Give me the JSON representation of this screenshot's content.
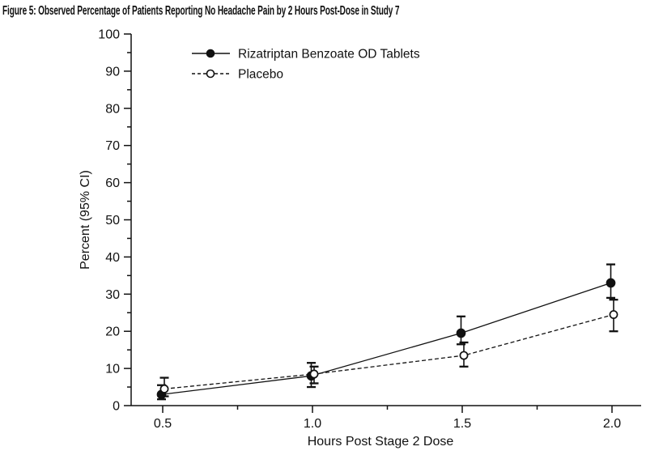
{
  "chart_data": {
    "type": "line",
    "title": "Figure 5: Observed Percentage of Patients Reporting No Headache Pain by 2 Hours Post-Dose in Study 7",
    "xlabel": "Hours Post Stage 2 Dose",
    "ylabel": "Percent (95% CI)",
    "xlim": [
      0.39,
      2.1
    ],
    "ylim": [
      0,
      100
    ],
    "grid": false,
    "legend_position": "top-left-inside",
    "x_ticks_major": [
      0.5,
      1.0,
      1.5,
      2.0
    ],
    "x_tick_labels": [
      "0.5",
      "1.0",
      "1.5",
      "2.0"
    ],
    "x_ticks_minor": [
      0.75,
      1.25,
      1.75
    ],
    "y_ticks_major": [
      0,
      10,
      20,
      30,
      40,
      50,
      60,
      70,
      80,
      90,
      100
    ],
    "y_ticks_minor": [
      5,
      15,
      25,
      35,
      45,
      55,
      65,
      75,
      85,
      95
    ],
    "series": [
      {
        "name": "Rizatriptan Benzoate OD Tablets",
        "line_style": "solid",
        "marker": "filled-circle",
        "x": [
          0.5,
          1.0,
          1.5,
          2.0
        ],
        "y": [
          3.0,
          8.0,
          19.5,
          33.0
        ],
        "ci_low": [
          1.7,
          5.0,
          16.5,
          29.0
        ],
        "ci_high": [
          5.5,
          11.5,
          24.0,
          38.0
        ]
      },
      {
        "name": "Placebo",
        "line_style": "dashed",
        "marker": "open-circle",
        "x": [
          0.5,
          1.0,
          1.5,
          2.0
        ],
        "y": [
          4.5,
          8.5,
          13.5,
          24.5
        ],
        "ci_low": [
          2.5,
          6.0,
          10.5,
          20.0
        ],
        "ci_high": [
          7.5,
          10.5,
          17.0,
          28.5
        ]
      }
    ]
  },
  "ink_color": "#111111",
  "background_color": "#ffffff"
}
